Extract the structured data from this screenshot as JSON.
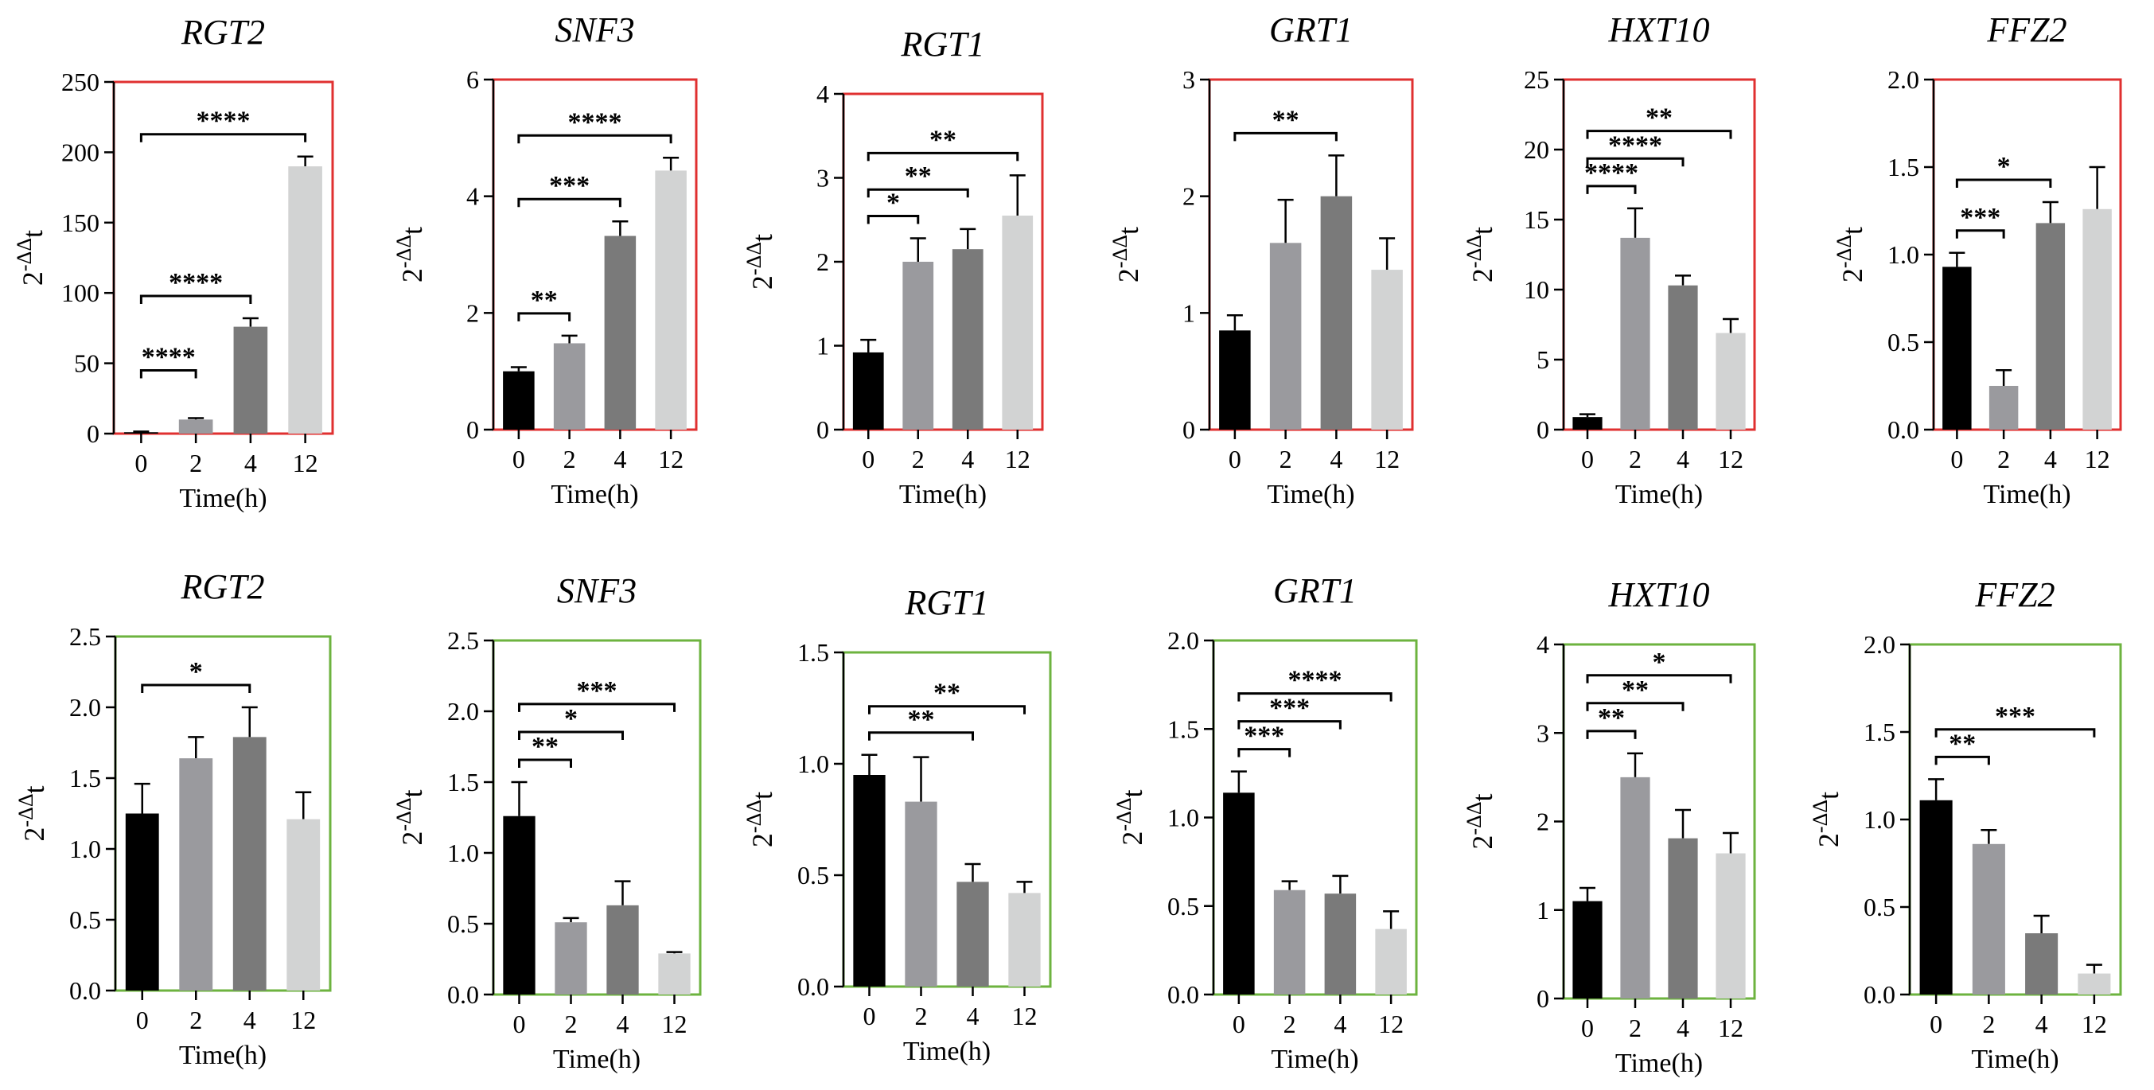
{
  "chart_data": [
    {
      "type": "bar",
      "row": "top",
      "title": "RGT2",
      "frame_color": "#e03030",
      "xlabel": "Time(h)",
      "ylabel": "2-ΔΔt",
      "categories": [
        "0",
        "2",
        "4",
        "12"
      ],
      "values": [
        1,
        10,
        76,
        190
      ],
      "errors": [
        0.5,
        1,
        6,
        7
      ],
      "bar_colors": [
        "#000000",
        "#9a9a9e",
        "#7a7a7a",
        "#d2d3d3"
      ],
      "ylim": [
        0,
        250
      ],
      "yticks": [
        "0",
        "50",
        "100",
        "150",
        "200",
        "250"
      ],
      "brackets": [
        {
          "from": 0,
          "to": 1,
          "label": "****"
        },
        {
          "from": 0,
          "to": 2,
          "label": "****"
        },
        {
          "from": 0,
          "to": 3,
          "label": "****"
        }
      ]
    },
    {
      "type": "bar",
      "row": "top",
      "title": "SNF3",
      "frame_color": "#e03030",
      "xlabel": "Time(h)",
      "ylabel": "2-ΔΔt",
      "categories": [
        "0",
        "2",
        "4",
        "12"
      ],
      "values": [
        1,
        1.48,
        3.32,
        4.44
      ],
      "errors": [
        0.07,
        0.13,
        0.25,
        0.22
      ],
      "bar_colors": [
        "#000000",
        "#9a9a9e",
        "#7a7a7a",
        "#d2d3d3"
      ],
      "ylim": [
        0,
        6
      ],
      "yticks": [
        "0",
        "2",
        "4",
        "6"
      ],
      "brackets": [
        {
          "from": 0,
          "to": 1,
          "label": "**"
        },
        {
          "from": 0,
          "to": 2,
          "label": "***"
        },
        {
          "from": 0,
          "to": 3,
          "label": "****"
        }
      ]
    },
    {
      "type": "bar",
      "row": "top",
      "title": "RGT1",
      "frame_color": "#e03030",
      "xlabel": "Time(h)",
      "ylabel": "2-ΔΔt",
      "categories": [
        "0",
        "2",
        "4",
        "12"
      ],
      "values": [
        0.92,
        2.0,
        2.15,
        2.55
      ],
      "errors": [
        0.15,
        0.28,
        0.24,
        0.48
      ],
      "bar_colors": [
        "#000000",
        "#9a9a9e",
        "#7a7a7a",
        "#d2d3d3"
      ],
      "ylim": [
        0,
        4
      ],
      "yticks": [
        "0",
        "1",
        "2",
        "3",
        "4"
      ],
      "brackets": [
        {
          "from": 0,
          "to": 1,
          "label": "*"
        },
        {
          "from": 0,
          "to": 2,
          "label": "**"
        },
        {
          "from": 0,
          "to": 3,
          "label": "**"
        }
      ]
    },
    {
      "type": "bar",
      "row": "top",
      "title": "GRT1",
      "frame_color": "#e03030",
      "xlabel": "Time(h)",
      "ylabel": "2-ΔΔt",
      "categories": [
        "0",
        "2",
        "4",
        "12"
      ],
      "values": [
        0.85,
        1.6,
        2.0,
        1.37
      ],
      "errors": [
        0.13,
        0.37,
        0.35,
        0.27
      ],
      "bar_colors": [
        "#000000",
        "#9a9a9e",
        "#7a7a7a",
        "#d2d3d3"
      ],
      "ylim": [
        0,
        3
      ],
      "yticks": [
        "0",
        "1",
        "2",
        "3"
      ],
      "brackets": [
        {
          "from": 0,
          "to": 2,
          "label": "**"
        }
      ]
    },
    {
      "type": "bar",
      "row": "top",
      "title": "HXT10",
      "frame_color": "#e03030",
      "xlabel": "Time(h)",
      "ylabel": "2-ΔΔt",
      "categories": [
        "0",
        "2",
        "4",
        "12"
      ],
      "values": [
        0.9,
        13.7,
        10.3,
        6.9
      ],
      "errors": [
        0.2,
        2.1,
        0.7,
        1.0
      ],
      "bar_colors": [
        "#000000",
        "#9a9a9e",
        "#7a7a7a",
        "#d2d3d3"
      ],
      "ylim": [
        0,
        25
      ],
      "yticks": [
        "0",
        "5",
        "10",
        "15",
        "20",
        "25"
      ],
      "brackets": [
        {
          "from": 0,
          "to": 1,
          "label": "****"
        },
        {
          "from": 0,
          "to": 2,
          "label": "****"
        },
        {
          "from": 0,
          "to": 3,
          "label": "**"
        }
      ]
    },
    {
      "type": "bar",
      "row": "top",
      "title": "FFZ2",
      "frame_color": "#e03030",
      "xlabel": "Time(h)",
      "ylabel": "2-ΔΔt",
      "categories": [
        "0",
        "2",
        "4",
        "12"
      ],
      "values": [
        0.93,
        0.25,
        1.18,
        1.26
      ],
      "errors": [
        0.08,
        0.09,
        0.12,
        0.24
      ],
      "bar_colors": [
        "#000000",
        "#9a9a9e",
        "#7a7a7a",
        "#d2d3d3"
      ],
      "ylim": [
        0,
        2.0
      ],
      "yticks": [
        "0.0",
        "0.5",
        "1.0",
        "1.5",
        "2.0"
      ],
      "brackets": [
        {
          "from": 0,
          "to": 1,
          "label": "***"
        },
        {
          "from": 0,
          "to": 2,
          "label": "*"
        }
      ]
    },
    {
      "type": "bar",
      "row": "bottom",
      "title": "RGT2",
      "frame_color": "#6db33f",
      "xlabel": "Time(h)",
      "ylabel": "2-ΔΔt",
      "categories": [
        "0",
        "2",
        "4",
        "12"
      ],
      "values": [
        1.25,
        1.64,
        1.79,
        1.21
      ],
      "errors": [
        0.21,
        0.15,
        0.21,
        0.19
      ],
      "bar_colors": [
        "#000000",
        "#9a9a9e",
        "#7a7a7a",
        "#d2d3d3"
      ],
      "ylim": [
        0,
        2.5
      ],
      "yticks": [
        "0.0",
        "0.5",
        "1.0",
        "1.5",
        "2.0",
        "2.5"
      ],
      "brackets": [
        {
          "from": 0,
          "to": 2,
          "label": "*"
        }
      ]
    },
    {
      "type": "bar",
      "row": "bottom",
      "title": "SNF3",
      "frame_color": "#6db33f",
      "xlabel": "Time(h)",
      "ylabel": "2-ΔΔt",
      "categories": [
        "0",
        "2",
        "4",
        "12"
      ],
      "values": [
        1.26,
        0.51,
        0.63,
        0.29
      ],
      "errors": [
        0.24,
        0.03,
        0.17,
        0.01
      ],
      "bar_colors": [
        "#000000",
        "#9a9a9e",
        "#7a7a7a",
        "#d2d3d3"
      ],
      "ylim": [
        0,
        2.5
      ],
      "yticks": [
        "0.0",
        "0.5",
        "1.0",
        "1.5",
        "2.0",
        "2.5"
      ],
      "brackets": [
        {
          "from": 0,
          "to": 1,
          "label": "**"
        },
        {
          "from": 0,
          "to": 2,
          "label": "*"
        },
        {
          "from": 0,
          "to": 3,
          "label": "***"
        }
      ]
    },
    {
      "type": "bar",
      "row": "bottom",
      "title": "RGT1",
      "frame_color": "#6db33f",
      "xlabel": "Time(h)",
      "ylabel": "2-ΔΔt",
      "categories": [
        "0",
        "2",
        "4",
        "12"
      ],
      "values": [
        0.95,
        0.83,
        0.47,
        0.42
      ],
      "errors": [
        0.09,
        0.2,
        0.08,
        0.05
      ],
      "bar_colors": [
        "#000000",
        "#9a9a9e",
        "#7a7a7a",
        "#d2d3d3"
      ],
      "ylim": [
        0,
        1.5
      ],
      "yticks": [
        "0.0",
        "0.5",
        "1.0",
        "1.5"
      ],
      "brackets": [
        {
          "from": 0,
          "to": 2,
          "label": "**"
        },
        {
          "from": 0,
          "to": 3,
          "label": "**"
        }
      ]
    },
    {
      "type": "bar",
      "row": "bottom",
      "title": "GRT1",
      "frame_color": "#6db33f",
      "xlabel": "Time(h)",
      "ylabel": "2-ΔΔt",
      "categories": [
        "0",
        "2",
        "4",
        "12"
      ],
      "values": [
        1.14,
        0.59,
        0.57,
        0.37
      ],
      "errors": [
        0.12,
        0.05,
        0.1,
        0.1
      ],
      "bar_colors": [
        "#000000",
        "#9a9a9e",
        "#7a7a7a",
        "#d2d3d3"
      ],
      "ylim": [
        0,
        2.0
      ],
      "yticks": [
        "0.0",
        "0.5",
        "1.0",
        "1.5",
        "2.0"
      ],
      "brackets": [
        {
          "from": 0,
          "to": 1,
          "label": "***"
        },
        {
          "from": 0,
          "to": 2,
          "label": "***"
        },
        {
          "from": 0,
          "to": 3,
          "label": "****"
        }
      ]
    },
    {
      "type": "bar",
      "row": "bottom",
      "title": "HXT10",
      "frame_color": "#6db33f",
      "xlabel": "Time(h)",
      "ylabel": "2-ΔΔt",
      "categories": [
        "0",
        "2",
        "4",
        "12"
      ],
      "values": [
        1.1,
        2.5,
        1.81,
        1.64
      ],
      "errors": [
        0.15,
        0.27,
        0.32,
        0.23
      ],
      "bar_colors": [
        "#000000",
        "#9a9a9e",
        "#7a7a7a",
        "#d2d3d3"
      ],
      "ylim": [
        0,
        4
      ],
      "yticks": [
        "0",
        "1",
        "2",
        "3",
        "4"
      ],
      "brackets": [
        {
          "from": 0,
          "to": 1,
          "label": "**"
        },
        {
          "from": 0,
          "to": 2,
          "label": "**"
        },
        {
          "from": 0,
          "to": 3,
          "label": "*"
        }
      ]
    },
    {
      "type": "bar",
      "row": "bottom",
      "title": "FFZ2",
      "frame_color": "#6db33f",
      "xlabel": "Time(h)",
      "ylabel": "2-ΔΔt",
      "categories": [
        "0",
        "2",
        "4",
        "12"
      ],
      "values": [
        1.11,
        0.86,
        0.35,
        0.12
      ],
      "errors": [
        0.12,
        0.08,
        0.1,
        0.05
      ],
      "bar_colors": [
        "#000000",
        "#9a9a9e",
        "#7a7a7a",
        "#d2d3d3"
      ],
      "ylim": [
        0,
        2.0
      ],
      "yticks": [
        "0.0",
        "0.5",
        "1.0",
        "1.5",
        "2.0"
      ],
      "brackets": [
        {
          "from": 0,
          "to": 1,
          "label": "**"
        },
        {
          "from": 0,
          "to": 3,
          "label": "***"
        }
      ]
    }
  ]
}
